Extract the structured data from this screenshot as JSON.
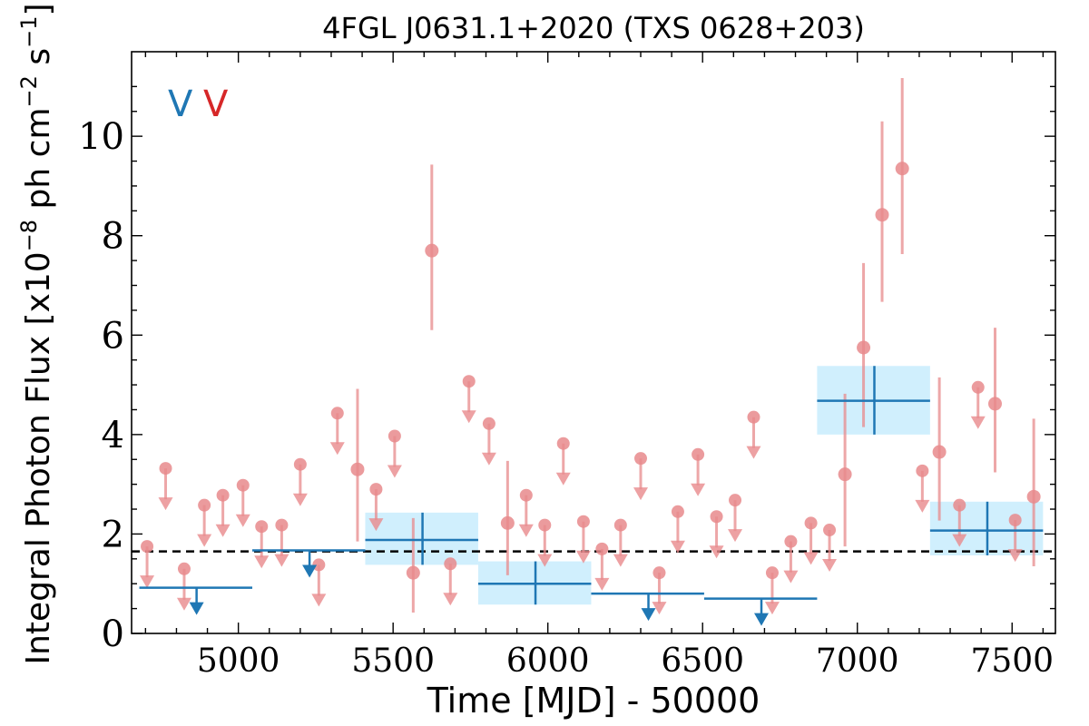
{
  "chart_data": {
    "type": "scatter",
    "title": "4FGL J0631.1+2020 (TXS 0628+203)",
    "xlabel": "Time [MJD] - 50000",
    "ylabel": "Integral Photon Flux [x10$^{-8}$ ph cm$^{-2}$ s$^{-1}$]",
    "ylabel_parts": {
      "prefix": "Integral Photon Flux [x10",
      "exp1": "−8",
      "mid": " ph cm",
      "exp2": "−2",
      "end": " s",
      "exp3": "−1",
      "close": "]"
    },
    "xlim": [
      4655,
      7640
    ],
    "ylim": [
      0,
      11.7
    ],
    "xticks": [
      5000,
      5500,
      6000,
      6500,
      7000,
      7500
    ],
    "xtick_labels": [
      "5000",
      "5500",
      "6000",
      "6500",
      "7000",
      "7500"
    ],
    "yticks": [
      0,
      2,
      4,
      6,
      8,
      10
    ],
    "ytick_labels": [
      "0",
      "2",
      "4",
      "6",
      "8",
      "10"
    ],
    "grid": false,
    "legend_markers": [
      "V",
      "V"
    ],
    "colors": {
      "bin_long": "#1f77b4",
      "bin_band": "#cdeefd",
      "bin_short": "#e88a8c",
      "reference_line": "#000000"
    },
    "reference_line": {
      "y": 1.65,
      "style": "dashed"
    },
    "series": [
      {
        "bin": "long",
        "detections": [
          {
            "x": 5595,
            "x_start": 5410,
            "x_end": 5775,
            "y": 1.88,
            "y_err_lo": 0.5,
            "y_err_hi": 0.55
          },
          {
            "x": 5960,
            "x_start": 5775,
            "x_end": 6140,
            "y": 1.0,
            "y_err_lo": 0.42,
            "y_err_hi": 0.45
          },
          {
            "x": 7055,
            "x_start": 6870,
            "x_end": 7235,
            "y": 4.68,
            "y_err_lo": 0.68,
            "y_err_hi": 0.7
          },
          {
            "x": 7420,
            "x_start": 7235,
            "x_end": 7600,
            "y": 2.07,
            "y_err_lo": 0.5,
            "y_err_hi": 0.58
          }
        ],
        "upper_limits": [
          {
            "x_start": 4680,
            "x_end": 5045,
            "y": 0.92,
            "arrow_x": 4865
          },
          {
            "x_start": 5045,
            "x_end": 5410,
            "y": 1.67,
            "arrow_x": 5230
          },
          {
            "x_start": 6140,
            "x_end": 6505,
            "y": 0.8,
            "arrow_x": 6325
          },
          {
            "x_start": 6505,
            "x_end": 6870,
            "y": 0.7,
            "arrow_x": 6690
          }
        ]
      },
      {
        "bin": "short",
        "detections": [
          {
            "x": 5385,
            "y": 3.3,
            "y_err_lo": 1.45,
            "y_err_hi": 1.62
          },
          {
            "x": 5565,
            "y": 1.22,
            "y_err_lo": 0.8,
            "y_err_hi": 1.1
          },
          {
            "x": 5625,
            "y": 7.7,
            "y_err_lo": 1.6,
            "y_err_hi": 1.73
          },
          {
            "x": 5870,
            "y": 2.22,
            "y_err_lo": 1.05,
            "y_err_hi": 1.25
          },
          {
            "x": 6960,
            "y": 3.2,
            "y_err_lo": 1.45,
            "y_err_hi": 1.62
          },
          {
            "x": 7020,
            "y": 5.75,
            "y_err_lo": 1.6,
            "y_err_hi": 1.7
          },
          {
            "x": 7080,
            "y": 8.42,
            "y_err_lo": 1.75,
            "y_err_hi": 1.88
          },
          {
            "x": 7145,
            "y": 9.35,
            "y_err_lo": 1.72,
            "y_err_hi": 1.82
          },
          {
            "x": 7265,
            "y": 3.65,
            "y_err_lo": 1.38,
            "y_err_hi": 1.5
          },
          {
            "x": 7445,
            "y": 4.62,
            "y_err_lo": 1.38,
            "y_err_hi": 1.53
          },
          {
            "x": 7570,
            "y": 2.75,
            "y_err_lo": 1.4,
            "y_err_hi": 1.57
          }
        ],
        "upper_limits": [
          {
            "x": 4705,
            "y": 1.75
          },
          {
            "x": 4765,
            "y": 3.32
          },
          {
            "x": 4825,
            "y": 1.3
          },
          {
            "x": 4890,
            "y": 2.58
          },
          {
            "x": 4950,
            "y": 2.78
          },
          {
            "x": 5015,
            "y": 2.98
          },
          {
            "x": 5075,
            "y": 2.15
          },
          {
            "x": 5140,
            "y": 2.18
          },
          {
            "x": 5200,
            "y": 3.4
          },
          {
            "x": 5260,
            "y": 1.38
          },
          {
            "x": 5320,
            "y": 4.43
          },
          {
            "x": 5445,
            "y": 2.9
          },
          {
            "x": 5505,
            "y": 3.97
          },
          {
            "x": 5685,
            "y": 1.4
          },
          {
            "x": 5745,
            "y": 5.07
          },
          {
            "x": 5810,
            "y": 4.22
          },
          {
            "x": 5930,
            "y": 2.78
          },
          {
            "x": 5990,
            "y": 2.18
          },
          {
            "x": 6050,
            "y": 3.82
          },
          {
            "x": 6115,
            "y": 2.25
          },
          {
            "x": 6175,
            "y": 1.7
          },
          {
            "x": 6235,
            "y": 2.18
          },
          {
            "x": 6300,
            "y": 3.52
          },
          {
            "x": 6360,
            "y": 1.22
          },
          {
            "x": 6420,
            "y": 2.45
          },
          {
            "x": 6485,
            "y": 3.6
          },
          {
            "x": 6545,
            "y": 2.35
          },
          {
            "x": 6605,
            "y": 2.68
          },
          {
            "x": 6665,
            "y": 4.35
          },
          {
            "x": 6725,
            "y": 1.22
          },
          {
            "x": 6785,
            "y": 1.85
          },
          {
            "x": 6850,
            "y": 2.22
          },
          {
            "x": 6910,
            "y": 2.08
          },
          {
            "x": 7210,
            "y": 3.27
          },
          {
            "x": 7330,
            "y": 2.58
          },
          {
            "x": 7390,
            "y": 4.95
          },
          {
            "x": 7510,
            "y": 2.28
          }
        ]
      }
    ]
  }
}
